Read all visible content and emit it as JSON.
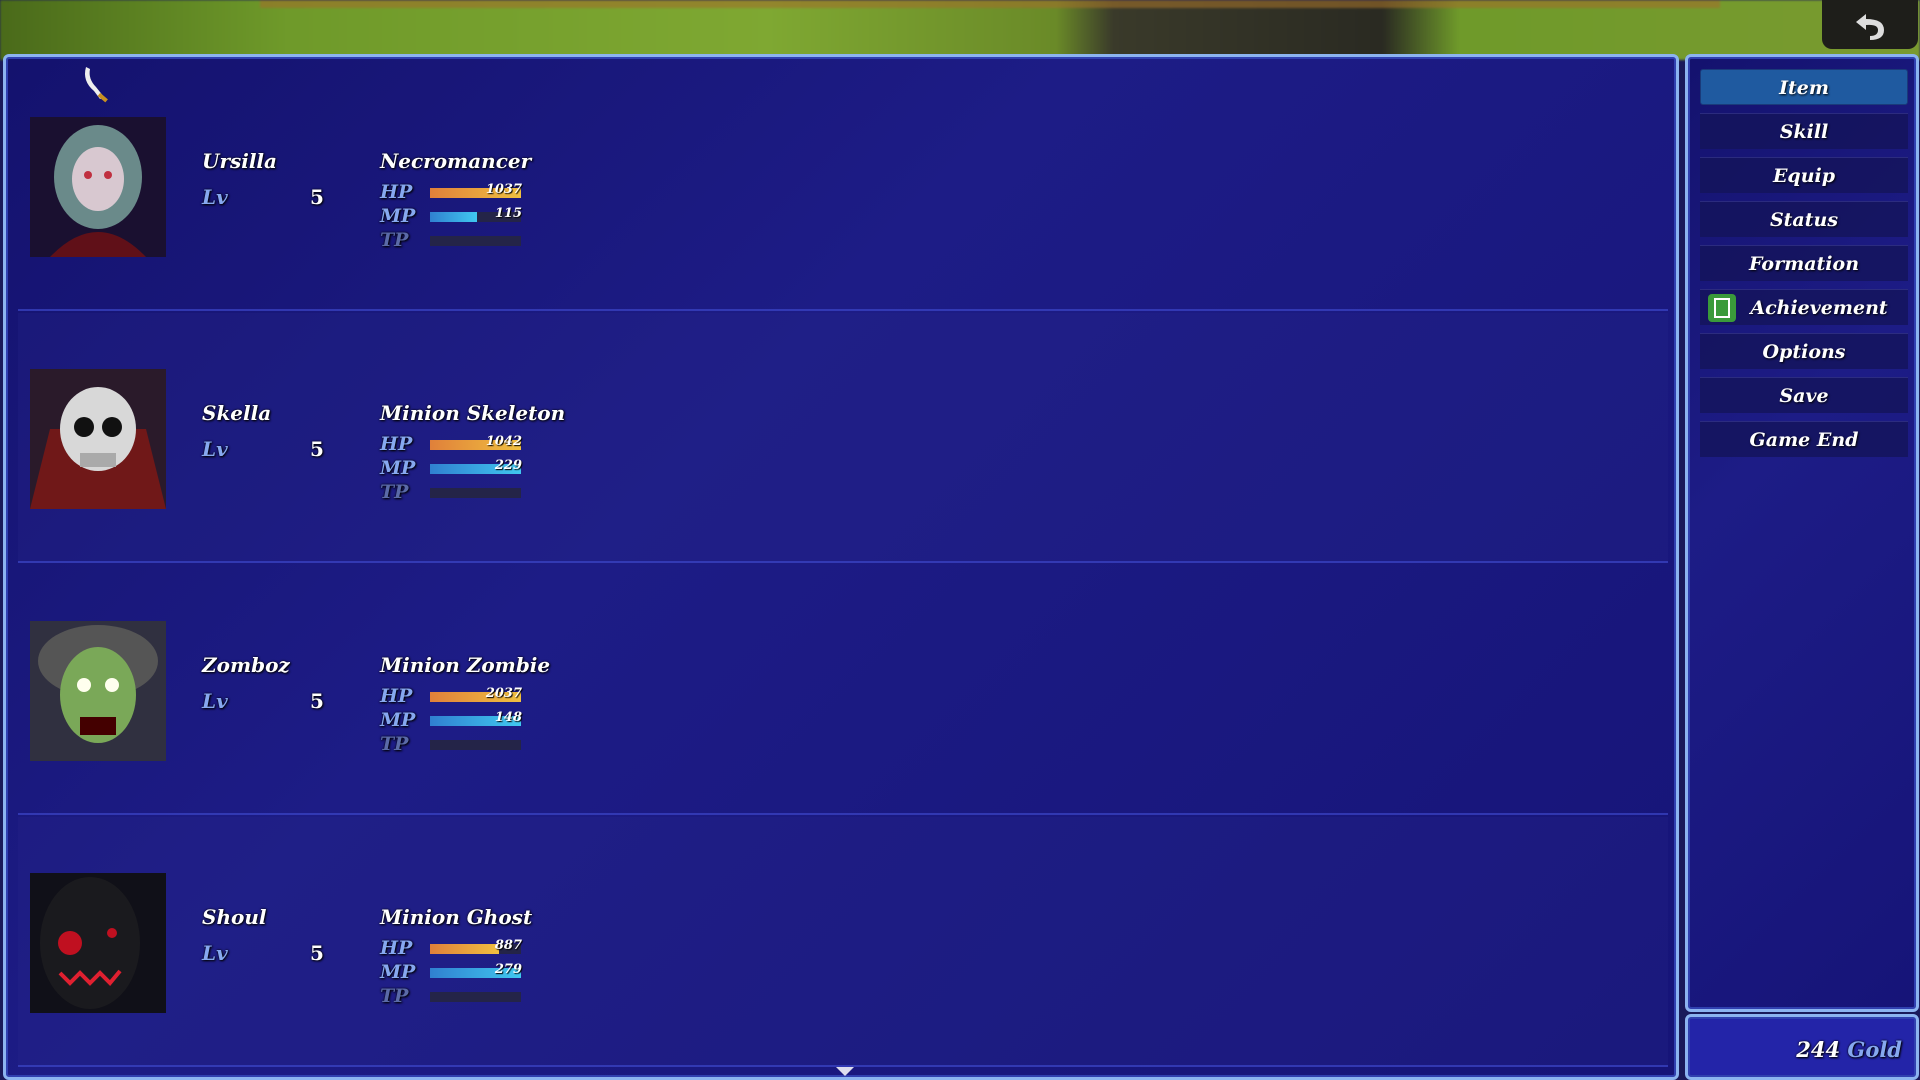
{
  "party": [
    {
      "name": "Ursilla",
      "level_label": "Lv",
      "level": "5",
      "class": "Necromancer",
      "hp": "1037",
      "mp": "115",
      "hp_fill": 1.0,
      "mp_fill": 0.52,
      "tp_fill": 0,
      "portrait": "elf-woman-portrait"
    },
    {
      "name": "Skella",
      "level_label": "Lv",
      "level": "5",
      "class": "Minion Skeleton",
      "hp": "1042",
      "mp": "229",
      "hp_fill": 1.0,
      "mp_fill": 1.0,
      "tp_fill": 0,
      "portrait": "skeleton-portrait"
    },
    {
      "name": "Zomboz",
      "level_label": "Lv",
      "level": "5",
      "class": "Minion Zombie",
      "hp": "2037",
      "mp": "148",
      "hp_fill": 1.0,
      "mp_fill": 1.0,
      "tp_fill": 0,
      "portrait": "zombie-portrait"
    },
    {
      "name": "Shoul",
      "level_label": "Lv",
      "level": "5",
      "class": "Minion Ghost",
      "hp": "887",
      "mp": "279",
      "hp_fill": 0.76,
      "mp_fill": 1.0,
      "tp_fill": 0,
      "portrait": "ghost-portrait"
    }
  ],
  "gauge_labels": {
    "hp": "HP",
    "mp": "MP",
    "tp": "TP"
  },
  "commands": [
    "Item",
    "Skill",
    "Equip",
    "Status",
    "Formation",
    "Achievement",
    "Options",
    "Save",
    "Game End"
  ],
  "selected_command": "Item",
  "gold": {
    "amount": "244",
    "unit": "Gold"
  },
  "colors": {
    "window": "#1d1c86",
    "border": "#8cb4f0",
    "hp": "#f0c040",
    "mp": "#40c8f0",
    "selected": "#1f5aa0"
  }
}
